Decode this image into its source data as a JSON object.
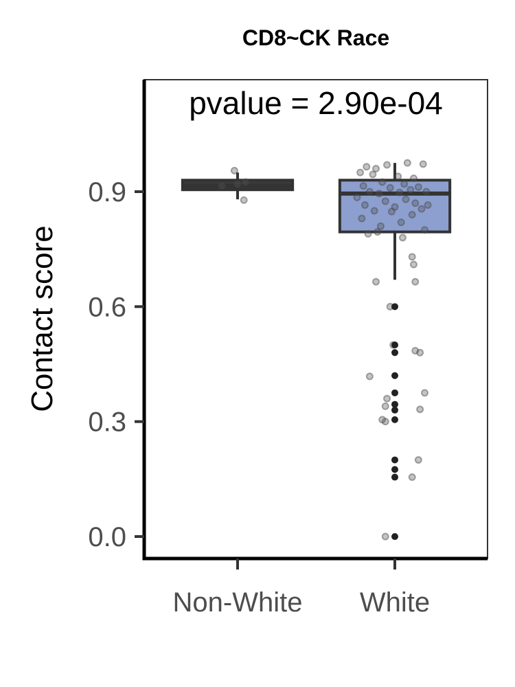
{
  "chart_data": {
    "type": "boxplot",
    "title": "CD8~CK Race",
    "annotation": "pvalue = 2.90e-04",
    "xlabel": "",
    "ylabel": "Contact score",
    "categories": [
      "Non-White",
      "White"
    ],
    "yticks": [
      "0.0",
      "0.3",
      "0.6",
      "0.9"
    ],
    "ylim": [
      -0.06,
      1.17
    ],
    "grid": false,
    "legend": "none",
    "colors": {
      "Non-White": "#3a3a3a",
      "White": "#8c9fcf"
    },
    "boxes": [
      {
        "category": "Non-White",
        "q1": 0.905,
        "median": 0.915,
        "q3": 0.93,
        "whisker_low": 0.88,
        "whisker_high": 0.95
      },
      {
        "category": "White",
        "q1": 0.795,
        "median": 0.895,
        "q3": 0.93,
        "whisker_low": 0.67,
        "whisker_high": 0.975
      }
    ],
    "outliers": [
      {
        "category": "White",
        "values": [
          0.6,
          0.5,
          0.48,
          0.42,
          0.375,
          0.345,
          0.33,
          0.305,
          0.2,
          0.175,
          0.155,
          0.0
        ]
      }
    ],
    "points": [
      {
        "category": "Non-White",
        "x_offset": 0.0,
        "y": 0.92
      },
      {
        "category": "Non-White",
        "x_offset": -0.1,
        "y": 0.915
      },
      {
        "category": "Non-White",
        "x_offset": 0.04,
        "y": 0.878
      },
      {
        "category": "Non-White",
        "x_offset": 0.05,
        "y": 0.925
      },
      {
        "category": "Non-White",
        "x_offset": -0.02,
        "y": 0.955
      },
      {
        "category": "White",
        "x_offset": -0.18,
        "y": 0.965
      },
      {
        "category": "White",
        "x_offset": -0.12,
        "y": 0.96
      },
      {
        "category": "White",
        "x_offset": -0.05,
        "y": 0.97
      },
      {
        "category": "White",
        "x_offset": 0.08,
        "y": 0.975
      },
      {
        "category": "White",
        "x_offset": 0.18,
        "y": 0.972
      },
      {
        "category": "White",
        "x_offset": -0.22,
        "y": 0.95
      },
      {
        "category": "White",
        "x_offset": -0.14,
        "y": 0.945
      },
      {
        "category": "White",
        "x_offset": 0.02,
        "y": 0.94
      },
      {
        "category": "White",
        "x_offset": 0.12,
        "y": 0.935
      },
      {
        "category": "White",
        "x_offset": -0.08,
        "y": 0.925
      },
      {
        "category": "White",
        "x_offset": 0.06,
        "y": 0.92
      },
      {
        "category": "White",
        "x_offset": -0.2,
        "y": 0.915
      },
      {
        "category": "White",
        "x_offset": 0.15,
        "y": 0.912
      },
      {
        "category": "White",
        "x_offset": -0.03,
        "y": 0.91
      },
      {
        "category": "White",
        "x_offset": 0.1,
        "y": 0.905
      },
      {
        "category": "White",
        "x_offset": -0.16,
        "y": 0.9
      },
      {
        "category": "White",
        "x_offset": 0.03,
        "y": 0.898
      },
      {
        "category": "White",
        "x_offset": -0.1,
        "y": 0.895
      },
      {
        "category": "White",
        "x_offset": 0.2,
        "y": 0.9
      },
      {
        "category": "White",
        "x_offset": -0.24,
        "y": 0.885
      },
      {
        "category": "White",
        "x_offset": 0.07,
        "y": 0.88
      },
      {
        "category": "White",
        "x_offset": -0.06,
        "y": 0.875
      },
      {
        "category": "White",
        "x_offset": 0.13,
        "y": 0.87
      },
      {
        "category": "White",
        "x_offset": -0.19,
        "y": 0.865
      },
      {
        "category": "White",
        "x_offset": 0.0,
        "y": 0.86
      },
      {
        "category": "White",
        "x_offset": 0.17,
        "y": 0.855
      },
      {
        "category": "White",
        "x_offset": -0.13,
        "y": 0.85
      },
      {
        "category": "White",
        "x_offset": -0.02,
        "y": 0.848
      },
      {
        "category": "White",
        "x_offset": 0.11,
        "y": 0.84
      },
      {
        "category": "White",
        "x_offset": -0.21,
        "y": 0.83
      },
      {
        "category": "White",
        "x_offset": 0.04,
        "y": 0.82
      },
      {
        "category": "White",
        "x_offset": -0.09,
        "y": 0.81
      },
      {
        "category": "White",
        "x_offset": 0.19,
        "y": 0.8
      },
      {
        "category": "White",
        "x_offset": -0.17,
        "y": 0.79
      },
      {
        "category": "White",
        "x_offset": 0.05,
        "y": 0.78
      },
      {
        "category": "White",
        "x_offset": -0.11,
        "y": 0.795
      },
      {
        "category": "White",
        "x_offset": 0.21,
        "y": 0.865
      },
      {
        "category": "White",
        "x_offset": 0.11,
        "y": 0.73
      },
      {
        "category": "White",
        "x_offset": 0.12,
        "y": 0.71
      },
      {
        "category": "White",
        "x_offset": -0.12,
        "y": 0.665
      },
      {
        "category": "White",
        "x_offset": 0.13,
        "y": 0.665
      },
      {
        "category": "White",
        "x_offset": -0.03,
        "y": 0.6
      },
      {
        "category": "White",
        "x_offset": -0.01,
        "y": 0.5
      },
      {
        "category": "White",
        "x_offset": 0.13,
        "y": 0.485
      },
      {
        "category": "White",
        "x_offset": 0.16,
        "y": 0.48
      },
      {
        "category": "White",
        "x_offset": -0.16,
        "y": 0.418
      },
      {
        "category": "White",
        "x_offset": 0.19,
        "y": 0.375
      },
      {
        "category": "White",
        "x_offset": -0.05,
        "y": 0.36
      },
      {
        "category": "White",
        "x_offset": -0.06,
        "y": 0.34
      },
      {
        "category": "White",
        "x_offset": 0.16,
        "y": 0.332
      },
      {
        "category": "White",
        "x_offset": -0.08,
        "y": 0.305
      },
      {
        "category": "White",
        "x_offset": -0.06,
        "y": 0.3
      },
      {
        "category": "White",
        "x_offset": 0.15,
        "y": 0.2
      },
      {
        "category": "White",
        "x_offset": 0.11,
        "y": 0.155
      },
      {
        "category": "White",
        "x_offset": -0.06,
        "y": 0.0
      }
    ]
  }
}
